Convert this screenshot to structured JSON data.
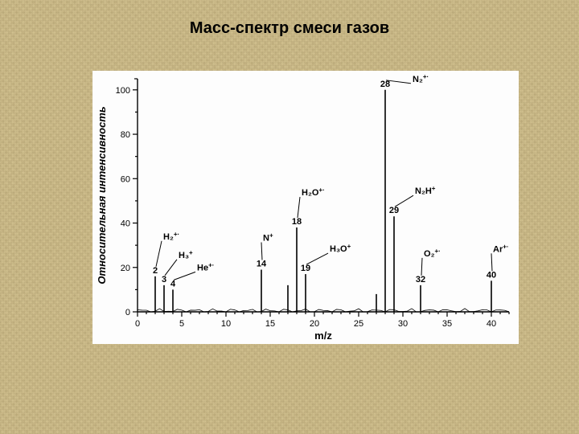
{
  "title": {
    "text": "Масс-спектр смеси газов",
    "fontsize": 20
  },
  "chart": {
    "type": "mass-spectrum",
    "background_color": "#fdfdfd",
    "axis_color": "#000000",
    "xlabel": "m/z",
    "ylabel": "Относительная интенсивность",
    "label_fontsize": 13,
    "tick_fontsize": 11,
    "xlim": [
      0,
      42
    ],
    "ylim": [
      0,
      105
    ],
    "xtick_step": 5,
    "ytick_step": 20,
    "x_ticks": [
      0,
      5,
      10,
      15,
      20,
      25,
      30,
      35,
      40
    ],
    "y_ticks": [
      0,
      20,
      40,
      60,
      80,
      100
    ],
    "peak_color": "#000000",
    "peak_line_width": 1.6,
    "peaks": [
      {
        "mz": 2,
        "intensity": 16,
        "mz_label": "2",
        "species": "H₂⁺•",
        "species_dx": 10,
        "species_dy": -34,
        "pointer": true
      },
      {
        "mz": 3,
        "intensity": 12,
        "mz_label": "3",
        "species": "H₃⁺",
        "species_dx": 18,
        "species_dy": -22,
        "pointer": true
      },
      {
        "mz": 4,
        "intensity": 10,
        "mz_label": "4",
        "species": "He⁺•",
        "species_dx": 30,
        "species_dy": -12,
        "pointer": true
      },
      {
        "mz": 14,
        "intensity": 19,
        "mz_label": "14",
        "species": "N⁺",
        "species_dx": 2,
        "species_dy": -24,
        "pointer": true
      },
      {
        "mz": 17,
        "intensity": 12,
        "mz_label": "",
        "species": "",
        "species_dx": 0,
        "species_dy": 0,
        "pointer": false
      },
      {
        "mz": 18,
        "intensity": 38,
        "mz_label": "18",
        "species": "H₂O⁺•",
        "species_dx": 6,
        "species_dy": -28,
        "pointer": true
      },
      {
        "mz": 19,
        "intensity": 17,
        "mz_label": "19",
        "species": "H₃O⁺",
        "species_dx": 30,
        "species_dy": -16,
        "pointer": true
      },
      {
        "mz": 27,
        "intensity": 8,
        "mz_label": "",
        "species": "",
        "species_dx": 0,
        "species_dy": 0,
        "pointer": false
      },
      {
        "mz": 28,
        "intensity": 100,
        "mz_label": "28",
        "species": "N₂⁺•",
        "species_dx": 34,
        "species_dy": 2,
        "pointer": true
      },
      {
        "mz": 29,
        "intensity": 43,
        "mz_label": "29",
        "species": "N₂H⁺",
        "species_dx": 26,
        "species_dy": -16,
        "pointer": true
      },
      {
        "mz": 32,
        "intensity": 12,
        "mz_label": "32",
        "species": "O₂⁺•",
        "species_dx": 4,
        "species_dy": -24,
        "pointer": true
      },
      {
        "mz": 40,
        "intensity": 14,
        "mz_label": "40",
        "species": "Ar⁺•",
        "species_dx": 2,
        "species_dy": -24,
        "pointer": true
      }
    ]
  },
  "page_background": "#d6c48f"
}
